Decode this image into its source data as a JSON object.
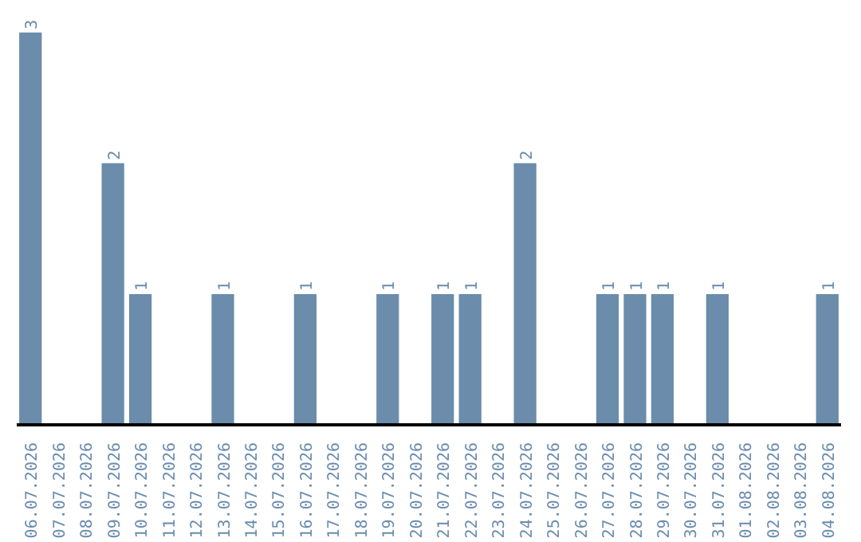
{
  "chart_data": {
    "type": "bar",
    "categories": [
      "06.07.2026",
      "07.07.2026",
      "08.07.2026",
      "09.07.2026",
      "10.07.2026",
      "11.07.2026",
      "12.07.2026",
      "13.07.2026",
      "14.07.2026",
      "15.07.2026",
      "16.07.2026",
      "17.07.2026",
      "18.07.2026",
      "19.07.2026",
      "20.07.2026",
      "21.07.2026",
      "22.07.2026",
      "23.07.2026",
      "24.07.2026",
      "25.07.2026",
      "26.07.2026",
      "27.07.2026",
      "28.07.2026",
      "29.07.2026",
      "30.07.2026",
      "31.07.2026",
      "01.08.2026",
      "02.08.2026",
      "03.08.2026",
      "04.08.2026"
    ],
    "values": [
      3,
      0,
      0,
      2,
      1,
      0,
      0,
      1,
      0,
      0,
      1,
      0,
      0,
      1,
      0,
      1,
      1,
      0,
      2,
      0,
      0,
      1,
      1,
      1,
      0,
      1,
      0,
      0,
      0,
      1
    ],
    "value_labels": [
      "3",
      null,
      null,
      "2",
      "1",
      null,
      null,
      "1",
      null,
      null,
      "1",
      null,
      null,
      "1",
      null,
      "1",
      "1",
      null,
      "2",
      null,
      null,
      "1",
      "1",
      "1",
      null,
      "1",
      null,
      null,
      null,
      "1"
    ],
    "color": "#6b8cab",
    "grid": false
  }
}
